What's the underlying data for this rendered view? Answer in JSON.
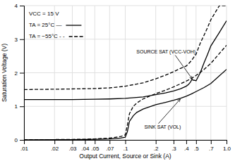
{
  "chart_data": {
    "type": "line",
    "xlabel": "Output Current, Source or Sink (A)",
    "ylabel": "Saturation Voltage (V)",
    "log": "x",
    "grid": true,
    "xlim": [
      0.01,
      1.0
    ],
    "ylim": [
      0,
      4
    ],
    "xticks": [
      {
        "value": 0.01,
        "label": ".01"
      },
      {
        "value": 0.02,
        "label": ".02"
      },
      {
        "value": 0.03,
        "label": ".03"
      },
      {
        "value": 0.04,
        "label": ".04"
      },
      {
        "value": 0.05,
        "label": ".05"
      },
      {
        "value": 0.07,
        "label": ".07"
      },
      {
        "value": 0.1,
        "label": ".1"
      },
      {
        "value": 0.2,
        "label": ".2"
      },
      {
        "value": 0.3,
        "label": ".3"
      },
      {
        "value": 0.4,
        "label": ".4"
      },
      {
        "value": 0.5,
        "label": ".5"
      },
      {
        "value": 0.7,
        "label": ".7"
      },
      {
        "value": 1.0,
        "label": "1.0"
      }
    ],
    "yticks": [
      0,
      1,
      2,
      3,
      4
    ],
    "series": [
      {
        "color": "#000000",
        "line_style": "dashed",
        "x": [
          0.01,
          0.02,
          0.03,
          0.04,
          0.05,
          0.07,
          0.09,
          0.1,
          0.105,
          0.11,
          0.12,
          0.13,
          0.15,
          0.2,
          0.25,
          0.3,
          0.35,
          0.4,
          0.45,
          0.5,
          0.6,
          0.7,
          1.0
        ],
        "values": [
          0.005,
          0.01,
          0.015,
          0.02,
          0.03,
          0.055,
          0.1,
          0.15,
          0.45,
          0.78,
          1.0,
          1.1,
          1.22,
          1.38,
          1.48,
          1.58,
          1.67,
          1.75,
          1.83,
          1.92,
          2.1,
          2.28,
          2.82
        ]
      },
      {
        "color": "#000000",
        "line_style": "solid",
        "x": [
          0.01,
          0.02,
          0.03,
          0.04,
          0.05,
          0.07,
          0.09,
          0.1,
          0.105,
          0.11,
          0.12,
          0.13,
          0.15,
          0.2,
          0.25,
          0.3,
          0.35,
          0.4,
          0.45,
          0.5,
          0.6,
          0.7,
          1.0
        ],
        "values": [
          0.003,
          0.006,
          0.009,
          0.013,
          0.018,
          0.03,
          0.055,
          0.08,
          0.25,
          0.55,
          0.72,
          0.82,
          0.92,
          1.05,
          1.12,
          1.18,
          1.24,
          1.3,
          1.37,
          1.44,
          1.56,
          1.68,
          2.1
        ]
      },
      {
        "color": "#000000",
        "line_style": "dashed",
        "x": [
          0.01,
          0.02,
          0.05,
          0.07,
          0.1,
          0.15,
          0.2,
          0.25,
          0.3,
          0.35,
          0.4,
          0.42,
          0.44,
          0.46,
          0.48,
          0.5,
          0.55,
          0.6,
          0.65,
          0.7,
          0.85,
          1.0
        ],
        "values": [
          1.5,
          1.51,
          1.53,
          1.55,
          1.6,
          1.7,
          1.82,
          1.93,
          2.03,
          2.13,
          2.2,
          2.26,
          2.33,
          2.4,
          2.48,
          2.55,
          2.88,
          3.12,
          3.35,
          3.58,
          4.0,
          4.0
        ]
      },
      {
        "color": "#000000",
        "line_style": "solid",
        "x": [
          0.01,
          0.02,
          0.03,
          0.05,
          0.07,
          0.1,
          0.15,
          0.2,
          0.25,
          0.3,
          0.35,
          0.4,
          0.42,
          0.44,
          0.455,
          0.47,
          0.49,
          0.5,
          0.55,
          0.6,
          0.65,
          0.7,
          0.85,
          1.0
        ],
        "values": [
          1.2,
          1.2,
          1.2,
          1.21,
          1.22,
          1.24,
          1.28,
          1.35,
          1.4,
          1.46,
          1.52,
          1.6,
          1.65,
          1.72,
          1.8,
          1.78,
          1.77,
          1.76,
          2.0,
          2.3,
          2.55,
          2.8,
          3.2,
          3.55
        ]
      }
    ],
    "annotations": [
      {
        "text": "VCC = 15 V"
      },
      {
        "text": "TA = 25°C —",
        "line_style": "solid"
      },
      {
        "text": "TA = −55°C - -",
        "line_style": "dashed"
      },
      {
        "text": "SOURCE SAT (VCC-VOH)",
        "x": 0.465,
        "y": 1.79
      },
      {
        "text": "SINK SAT (VOL)",
        "x": 0.355,
        "y": 1.24
      }
    ]
  }
}
